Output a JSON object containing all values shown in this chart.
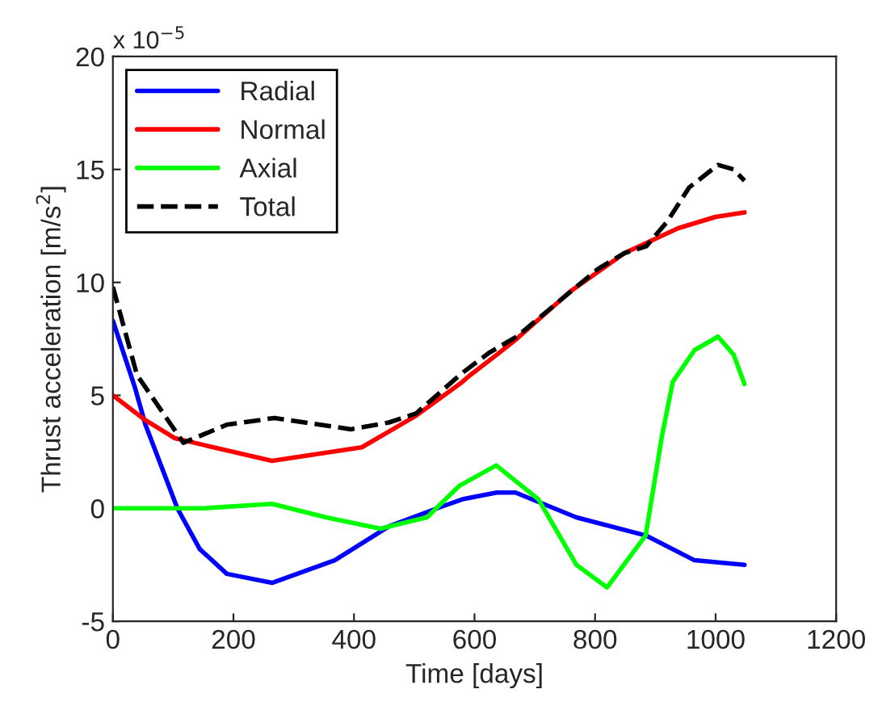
{
  "chart_data": {
    "type": "line",
    "xlabel": "Time [days]",
    "ylabel": "Thrust acceleration [m/s$^{2}$]",
    "annotations": [
      "x 10$^{−5}$"
    ],
    "xlim": [
      0,
      1200
    ],
    "ylim": [
      -5,
      20
    ],
    "xticks": [
      0,
      200,
      400,
      600,
      800,
      1000,
      1200
    ],
    "yticks": [
      -5,
      0,
      5,
      10,
      15,
      20
    ],
    "grid": false,
    "legend": "top left",
    "marker": "none",
    "series": [
      {
        "name": "Radial",
        "color": "#0000ff",
        "line_style": "solid",
        "x": [
          0,
          36,
          54,
          107,
          144,
          189,
          264,
          368,
          458,
          548,
          580,
          637,
          668,
          769,
          884,
          965,
          1048
        ],
        "values": [
          8.3,
          5.4,
          3.7,
          0,
          -1.8,
          -2.9,
          -3.3,
          -2.3,
          -0.8,
          0.1,
          0.4,
          0.7,
          0.7,
          -0.4,
          -1.2,
          -2.3,
          -2.5
        ]
      },
      {
        "name": "Normal",
        "color": "#ff0000",
        "line_style": "solid",
        "x": [
          0,
          54,
          103,
          264,
          413,
          503,
          580,
          593,
          637,
          670,
          759,
          849,
          938,
          1000,
          1048
        ],
        "values": [
          5.0,
          3.9,
          3.1,
          2.1,
          2.7,
          4.1,
          5.6,
          5.9,
          6.8,
          7.5,
          9.6,
          11.3,
          12.4,
          12.9,
          13.1
        ]
      },
      {
        "name": "Axial",
        "color": "#00ff00",
        "line_style": "solid",
        "x": [
          0,
          150,
          264,
          354,
          444,
          521,
          575,
          636,
          706,
          769,
          820,
          884,
          911,
          929,
          965,
          1004,
          1030,
          1048
        ],
        "values": [
          0,
          0,
          0.2,
          -0.4,
          -0.9,
          -0.4,
          1.0,
          1.9,
          0.4,
          -2.5,
          -3.5,
          -1.2,
          3.2,
          5.6,
          7.0,
          7.6,
          6.8,
          5.5
        ]
      },
      {
        "name": "Total",
        "color": "#000000",
        "line_style": "dashed",
        "x": [
          0,
          40,
          117,
          189,
          268,
          395,
          458,
          503,
          580,
          625,
          670,
          742,
          805,
          849,
          885,
          920,
          956,
          1004,
          1030,
          1048
        ],
        "values": [
          9.8,
          5.9,
          2.9,
          3.7,
          4.0,
          3.5,
          3.8,
          4.2,
          6.0,
          6.9,
          7.6,
          9.2,
          10.6,
          11.3,
          11.6,
          12.7,
          14.2,
          15.2,
          15.0,
          14.5
        ]
      }
    ]
  }
}
